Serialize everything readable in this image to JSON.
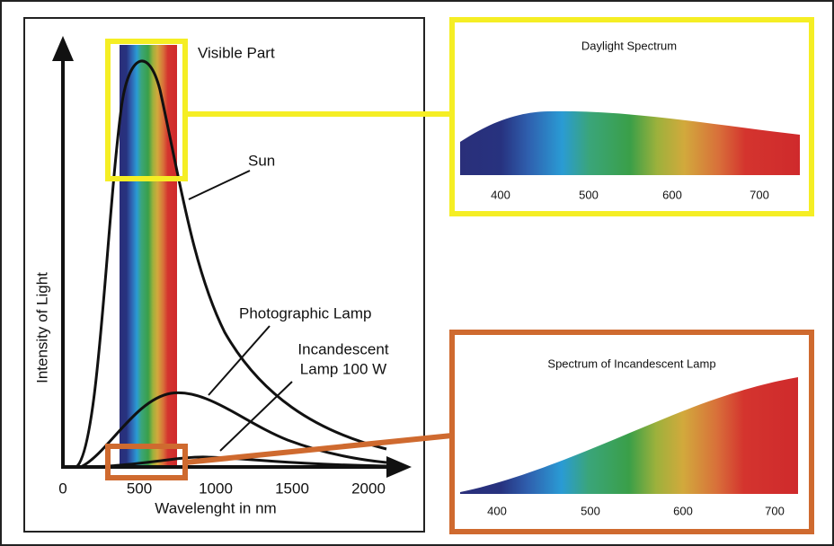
{
  "main_plot": {
    "y_axis_label": "Intensity of Light",
    "x_axis_label": "Wavelenght in nm",
    "x_ticks": [
      "0",
      "500",
      "1000",
      "1500",
      "2000"
    ],
    "labels": {
      "visible": "Visible Part",
      "sun": "Sun",
      "photographic": "Photographic Lamp",
      "incandescent": [
        "Incandescent",
        "Lamp 100 W"
      ]
    }
  },
  "daylight_panel": {
    "title": "Daylight Spectrum",
    "x_ticks": [
      "400",
      "500",
      "600",
      "700"
    ]
  },
  "incandescent_panel": {
    "title": "Spectrum of Incandescent Lamp",
    "x_ticks": [
      "400",
      "500",
      "600",
      "700"
    ]
  }
}
